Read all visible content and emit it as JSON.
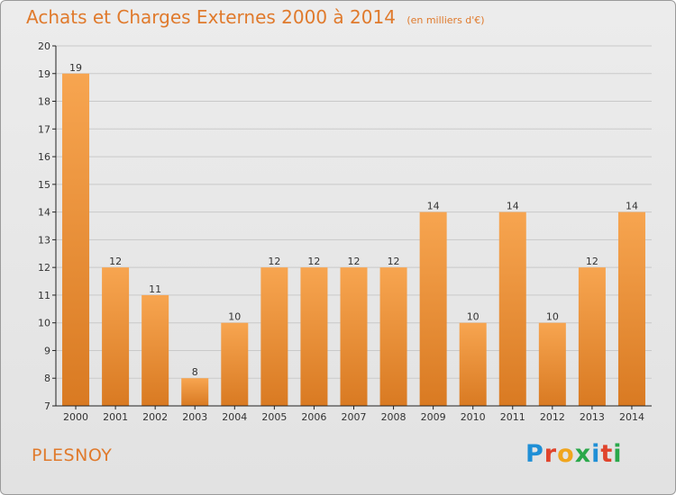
{
  "header": {
    "title": "Achats et Charges Externes 2000 à 2014",
    "unit": "(en milliers d'€)"
  },
  "footer": {
    "place": "PLESNOY",
    "brand": "Proxiti"
  },
  "colors": {
    "title": "#e07a2c",
    "bar_light": "#f7a550",
    "bar_dark": "#d97a22",
    "grid": "#c9c9c9",
    "axis": "#222222"
  },
  "chart_data": {
    "type": "bar",
    "title": "Achats et Charges Externes 2000 à 2014",
    "subtitle": "(en milliers d'€)",
    "categories": [
      "2000",
      "2001",
      "2002",
      "2003",
      "2004",
      "2005",
      "2006",
      "2007",
      "2008",
      "2009",
      "2010",
      "2011",
      "2012",
      "2013",
      "2014"
    ],
    "values": [
      19,
      12,
      11,
      8,
      10,
      12,
      12,
      12,
      12,
      14,
      10,
      14,
      10,
      12,
      14
    ],
    "ylim": [
      7,
      20
    ],
    "yticks": [
      7,
      8,
      9,
      10,
      11,
      12,
      13,
      14,
      15,
      16,
      17,
      18,
      19,
      20
    ],
    "grid": true,
    "data_labels": true
  }
}
